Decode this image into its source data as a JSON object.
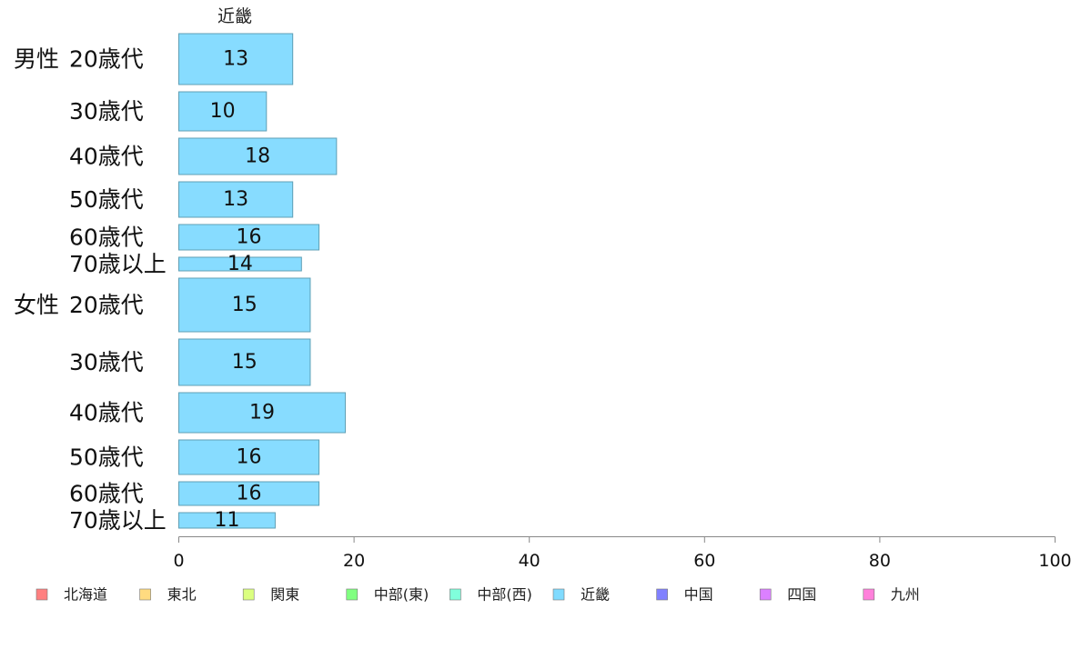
{
  "chart_data": {
    "type": "bar",
    "orientation": "horizontal",
    "title": "近畿",
    "groups": [
      {
        "label": "男性",
        "categories": [
          "20歳代",
          "30歳代",
          "40歳代",
          "50歳代",
          "60歳代",
          "70歳以上"
        ]
      },
      {
        "label": "女性",
        "categories": [
          "20歳代",
          "30歳代",
          "40歳代",
          "50歳代",
          "60歳代",
          "70歳以上"
        ]
      }
    ],
    "series": [
      {
        "name": "近畿",
        "color": "#87dcff",
        "values": [
          13,
          10,
          18,
          13,
          16,
          14,
          15,
          15,
          19,
          16,
          16,
          11
        ]
      }
    ],
    "xlim": [
      0,
      100
    ],
    "xticks": [
      "0",
      "20",
      "40",
      "60",
      "80",
      "100"
    ],
    "xlabel": "",
    "ylabel": "",
    "grid": false,
    "legend_position": "bottom",
    "legend": [
      {
        "name": "北海道",
        "color": "#ff8080"
      },
      {
        "name": "東北",
        "color": "#ffdb80"
      },
      {
        "name": "関東",
        "color": "#dbff80"
      },
      {
        "name": "中部(東)",
        "color": "#80ff80"
      },
      {
        "name": "中部(西)",
        "color": "#80ffdb"
      },
      {
        "name": "近畿",
        "color": "#80dbff"
      },
      {
        "name": "中国",
        "color": "#8080ff"
      },
      {
        "name": "四国",
        "color": "#db80ff"
      },
      {
        "name": "九州",
        "color": "#ff80db"
      }
    ]
  }
}
